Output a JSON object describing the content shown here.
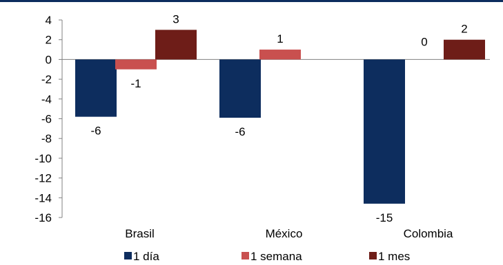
{
  "chart_data": {
    "type": "bar",
    "categories": [
      "Brasil",
      "México",
      "Colombia"
    ],
    "series": [
      {
        "name": "1 día",
        "color": "#0d2d5e",
        "values": [
          -5.8,
          -5.9,
          -14.6
        ],
        "labels": [
          "-6",
          "-6",
          "-15"
        ]
      },
      {
        "name": "1 semana",
        "color": "#c9504f",
        "values": [
          -1.0,
          1.0,
          0.0
        ],
        "labels": [
          "-1",
          "1",
          "0"
        ]
      },
      {
        "name": "1 mes",
        "color": "#6e1d18",
        "values": [
          3.0,
          0.0,
          2.0
        ],
        "labels": [
          "3",
          "",
          "2"
        ]
      }
    ],
    "ylim": [
      -16,
      4
    ],
    "yticks": [
      4,
      2,
      0,
      -2,
      -4,
      -6,
      -8,
      -10,
      -12,
      -14,
      -16
    ],
    "legend_position": "bottom",
    "grid": false
  }
}
